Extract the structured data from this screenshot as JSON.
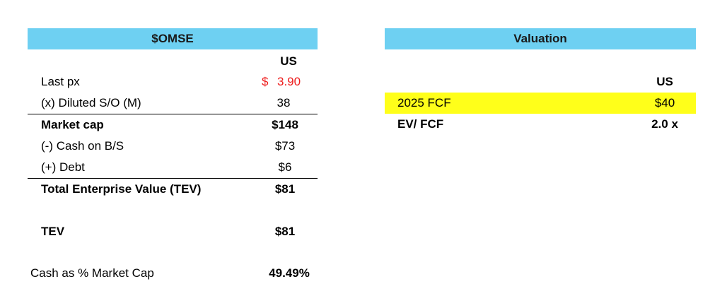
{
  "left": {
    "header": "$OMSE",
    "col_header": "US",
    "rows": [
      {
        "label": "Last px",
        "currency": "$",
        "value": "3.90"
      },
      {
        "label": "(x) Diluted S/O (M)",
        "value": "38"
      },
      {
        "label": "Market cap",
        "value": "$148"
      },
      {
        "label": "(-) Cash on B/S",
        "value": "$73"
      },
      {
        "label": "(+) Debt",
        "value": "$6"
      },
      {
        "label": "Total Enterprise Value (TEV)",
        "value": "$81"
      },
      {
        "label": "TEV",
        "value": "$81"
      },
      {
        "label": "Cash as % Market Cap",
        "value": "49.49%"
      }
    ]
  },
  "right": {
    "header": "Valuation",
    "col_header": "US",
    "rows": [
      {
        "label": "2025 FCF",
        "value": "$40"
      },
      {
        "label": "EV/ FCF",
        "value": "2.0 x"
      }
    ]
  },
  "colors": {
    "header_bg": "#6ed0f2",
    "highlight": "#ffff1a",
    "price_red": "#ee1c1c"
  }
}
